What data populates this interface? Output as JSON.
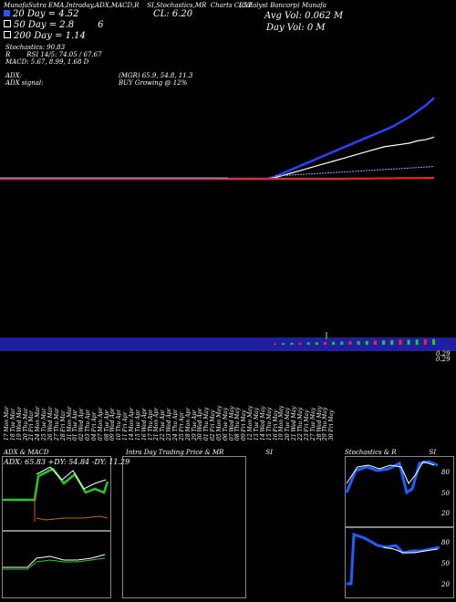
{
  "header": {
    "title_line": "MunafaSutra  EMA,Intraday,ADX,MACD,R",
    "title_line2": "SI,Stochastics,MR",
    "symbol": "Charts CLST",
    "company": "(Catalyst  Bancorp)  Munafa",
    "close_label": "CL: 6.20",
    "avg_vol": "Avg Vol: 0.062  M",
    "day_vol": "Day Vol: 0   M",
    "legend": [
      {
        "label": "20  Day = 4.52",
        "extra": "",
        "color": "#2255ff"
      },
      {
        "label": "50  Day = 2.8",
        "extra": "6",
        "color": "#ffffff"
      },
      {
        "label": "200  Day = 1.14",
        "extra": "",
        "color": "#ff3333"
      }
    ],
    "stochastics": "Stochastics: 90.83",
    "rsi": "RSI 14/5: 74.05 / 67.67",
    "rsi_prefix": "R",
    "macd": "MACD: 5.67,  8.99,  1.68  D",
    "adx": "ADX:",
    "adx_vals": "(MGR) 65.9,  54.8,  11.3",
    "adx_signal": "ADX  signal:",
    "signal": "BUY Growing @ 12%"
  },
  "price_scale": {
    "top_label": "0.29",
    "bottom_label": "0.29"
  },
  "colors": {
    "accent": "#2233ff",
    "volume_band": "#1f1fa0",
    "green": "#22cc22",
    "red": "#ff2222"
  },
  "dates": [
    "17 Mon Mar",
    "18 Tue Mar",
    "19 Wed Mar",
    "20 Thu Mar",
    "21 Fri Mar",
    "24 Mon Mar",
    "25 Tue Mar",
    "26 Wed Mar",
    "27 Thu Mar",
    "28 Fri Mar",
    "31 Mon Mar",
    "01 Tue Apr",
    "02 Wed Apr",
    "03 Thu Apr",
    "04 Fri Apr",
    "07 Mon Apr",
    "08 Tue Apr",
    "09 Wed Apr",
    "10 Thu Apr",
    "11 Fri Apr",
    "14 Mon Apr",
    "15 Tue Apr",
    "16 Wed Apr",
    "17 Thu Apr",
    "21 Mon Apr",
    "22 Tue Apr",
    "23 Wed Apr",
    "24 Thu Apr",
    "25 Fri Apr",
    "28 Mon Apr",
    "29 Tue Apr",
    "30 Wed Apr",
    "01 Thu May",
    "02 Fri May",
    "05 Mon May",
    "06 Tue May",
    "07 Wed May",
    "08 Thu May",
    "09 Fri May",
    "12 Mon May",
    "13 Tue May",
    "14 Wed May",
    "15 Thu May",
    "16 Fri May",
    "19 Mon May",
    "20 Tue May",
    "21 Wed May",
    "22 Thu May",
    "23 Fri May",
    "27 Tue May",
    "28 Wed May",
    "29 Thu May",
    "30 Fri May"
  ],
  "panels": {
    "adx_title": "ADX  & MACD",
    "adx_values": "ADX: 65.83  +DY: 54.84  -DY: 11.29",
    "intra_title": "Intra  Day Trading Price  & MR",
    "intra_title2": "SI",
    "stoch_title": "Stochastics & R",
    "stoch_title2": "SI",
    "stoch_ticks": [
      "80",
      "50",
      "20"
    ],
    "rsi_ticks": [
      "80",
      "50",
      "20"
    ],
    "stoch_tag": "90.83"
  },
  "chart_data": {
    "type": "line",
    "x": [
      "17 Mar",
      "18 Mar",
      "19 Mar",
      "20 Mar",
      "21 Mar",
      "24 Mar",
      "25 Mar",
      "26 Mar",
      "27 Mar",
      "28 Mar",
      "31 Mar",
      "01 Apr",
      "02 Apr",
      "03 Apr",
      "04 Apr",
      "07 Apr",
      "08 Apr",
      "09 Apr",
      "10 Apr",
      "11 Apr",
      "14 Apr",
      "15 Apr",
      "16 Apr",
      "17 Apr",
      "21 Apr",
      "22 Apr",
      "23 Apr",
      "24 Apr",
      "25 Apr",
      "28 Apr",
      "29 Apr",
      "30 Apr",
      "01 May",
      "02 May",
      "05 May",
      "06 May",
      "07 May",
      "08 May",
      "09 May",
      "12 May",
      "13 May",
      "14 May",
      "15 May",
      "16 May",
      "19 May",
      "20 May",
      "21 May",
      "22 May",
      "23 May",
      "27 May",
      "28 May",
      "29 May",
      "30 May"
    ],
    "series": [
      {
        "name": "20  Day",
        "values": [
          1.1,
          1.1,
          1.1,
          1.1,
          1.1,
          1.1,
          1.1,
          1.1,
          1.1,
          1.1,
          1.1,
          1.1,
          1.1,
          1.1,
          1.1,
          1.1,
          1.1,
          1.1,
          1.1,
          1.1,
          1.1,
          1.1,
          1.1,
          1.1,
          1.1,
          1.1,
          1.1,
          1.1,
          1.1,
          1.1,
          1.1,
          1.1,
          1.1,
          1.2,
          1.35,
          1.5,
          1.65,
          1.8,
          1.95,
          2.1,
          2.25,
          2.4,
          2.55,
          2.7,
          2.85,
          3.0,
          3.15,
          3.3,
          3.5,
          3.7,
          3.95,
          4.2,
          4.52
        ]
      },
      {
        "name": "50  Day",
        "values": [
          1.1,
          1.1,
          1.1,
          1.1,
          1.1,
          1.1,
          1.1,
          1.1,
          1.1,
          1.1,
          1.1,
          1.1,
          1.1,
          1.1,
          1.1,
          1.1,
          1.1,
          1.1,
          1.1,
          1.1,
          1.1,
          1.1,
          1.1,
          1.1,
          1.1,
          1.1,
          1.1,
          1.1,
          1.1,
          1.1,
          1.1,
          1.1,
          1.1,
          1.15,
          1.25,
          1.35,
          1.45,
          1.55,
          1.65,
          1.75,
          1.85,
          1.95,
          2.05,
          2.15,
          2.25,
          2.35,
          2.45,
          2.5,
          2.55,
          2.6,
          2.7,
          2.75,
          2.86
        ]
      },
      {
        "name": "200  Day",
        "values": [
          1.1,
          1.1,
          1.1,
          1.1,
          1.1,
          1.1,
          1.1,
          1.1,
          1.1,
          1.1,
          1.1,
          1.1,
          1.1,
          1.1,
          1.1,
          1.1,
          1.1,
          1.1,
          1.1,
          1.1,
          1.1,
          1.1,
          1.1,
          1.1,
          1.1,
          1.1,
          1.1,
          1.1,
          1.1,
          1.1,
          1.1,
          1.1,
          1.1,
          1.1,
          1.1,
          1.1,
          1.1,
          1.1,
          1.1,
          1.1,
          1.1,
          1.1,
          1.11,
          1.11,
          1.11,
          1.12,
          1.12,
          1.12,
          1.13,
          1.13,
          1.13,
          1.14,
          1.14
        ]
      }
    ],
    "ylim": [
      0,
      8
    ]
  }
}
